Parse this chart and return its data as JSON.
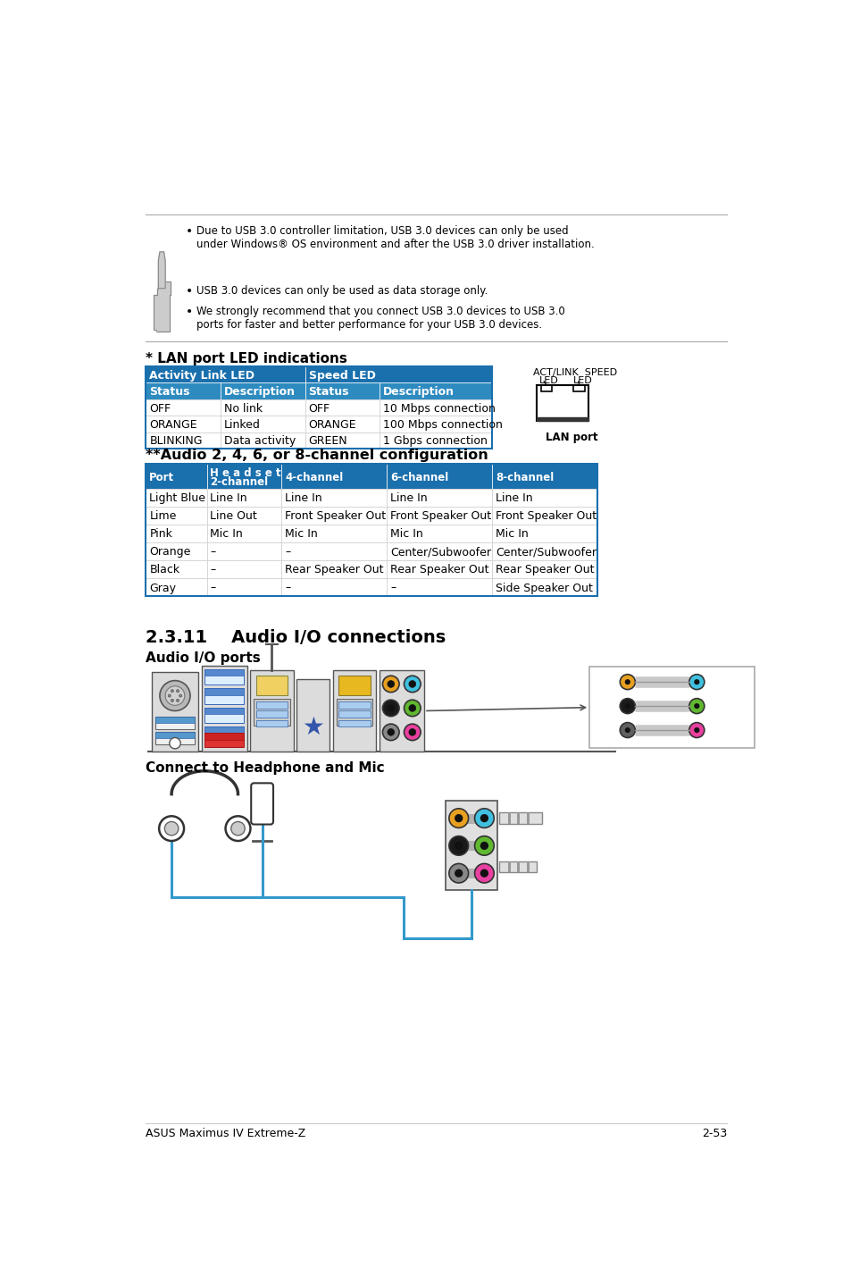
{
  "bg_color": "#ffffff",
  "note_text_lines": [
    "Due to USB 3.0 controller limitation, USB 3.0 devices can only be used\nunder Windows® OS environment and after the USB 3.0 driver installation.",
    "USB 3.0 devices can only be used as data storage only.",
    "We strongly recommend that you connect USB 3.0 devices to USB 3.0\nports for faster and better performance for your USB 3.0 devices."
  ],
  "lan_section_title": "* LAN port LED indications",
  "lan_table_header1": "Activity Link LED",
  "lan_table_header2": "Speed LED",
  "lan_col_headers": [
    "Status",
    "Description",
    "Status",
    "Description"
  ],
  "lan_rows": [
    [
      "OFF",
      "No link",
      "OFF",
      "10 Mbps connection"
    ],
    [
      "ORANGE",
      "Linked",
      "ORANGE",
      "100 Mbps connection"
    ],
    [
      "BLINKING",
      "Data activity",
      "GREEN",
      "1 Gbps connection"
    ]
  ],
  "audio_section_title": "**Audio 2, 4, 6, or 8-channel configuration",
  "audio_col_headers": [
    "Port",
    "H e a d s e t\n2-channel",
    "4-channel",
    "6-channel",
    "8-channel"
  ],
  "audio_rows": [
    [
      "Light Blue",
      "Line In",
      "Line In",
      "Line In",
      "Line In"
    ],
    [
      "Lime",
      "Line Out",
      "Front Speaker Out",
      "Front Speaker Out",
      "Front Speaker Out"
    ],
    [
      "Pink",
      "Mic In",
      "Mic In",
      "Mic In",
      "Mic In"
    ],
    [
      "Orange",
      "–",
      "–",
      "Center/Subwoofer",
      "Center/Subwoofer"
    ],
    [
      "Black",
      "–",
      "Rear Speaker Out",
      "Rear Speaker Out",
      "Rear Speaker Out"
    ],
    [
      "Gray",
      "–",
      "–",
      "–",
      "Side Speaker Out"
    ]
  ],
  "section_2311_title": "2.3.11    Audio I/O connections",
  "audio_io_ports_title": "Audio I/O ports",
  "connect_title": "Connect to Headphone and Mic",
  "footer_left": "ASUS Maximus IV Extreme-Z",
  "footer_right": "2-53",
  "header_color": "#1a6fad",
  "subheader_color": "#2e8bc0",
  "orange_port": "#e8a020",
  "light_blue_port": "#40c0e0",
  "black_port": "#1a1a1a",
  "lime_port": "#60b830",
  "gray_port": "#606060",
  "pink_port": "#e840a0"
}
